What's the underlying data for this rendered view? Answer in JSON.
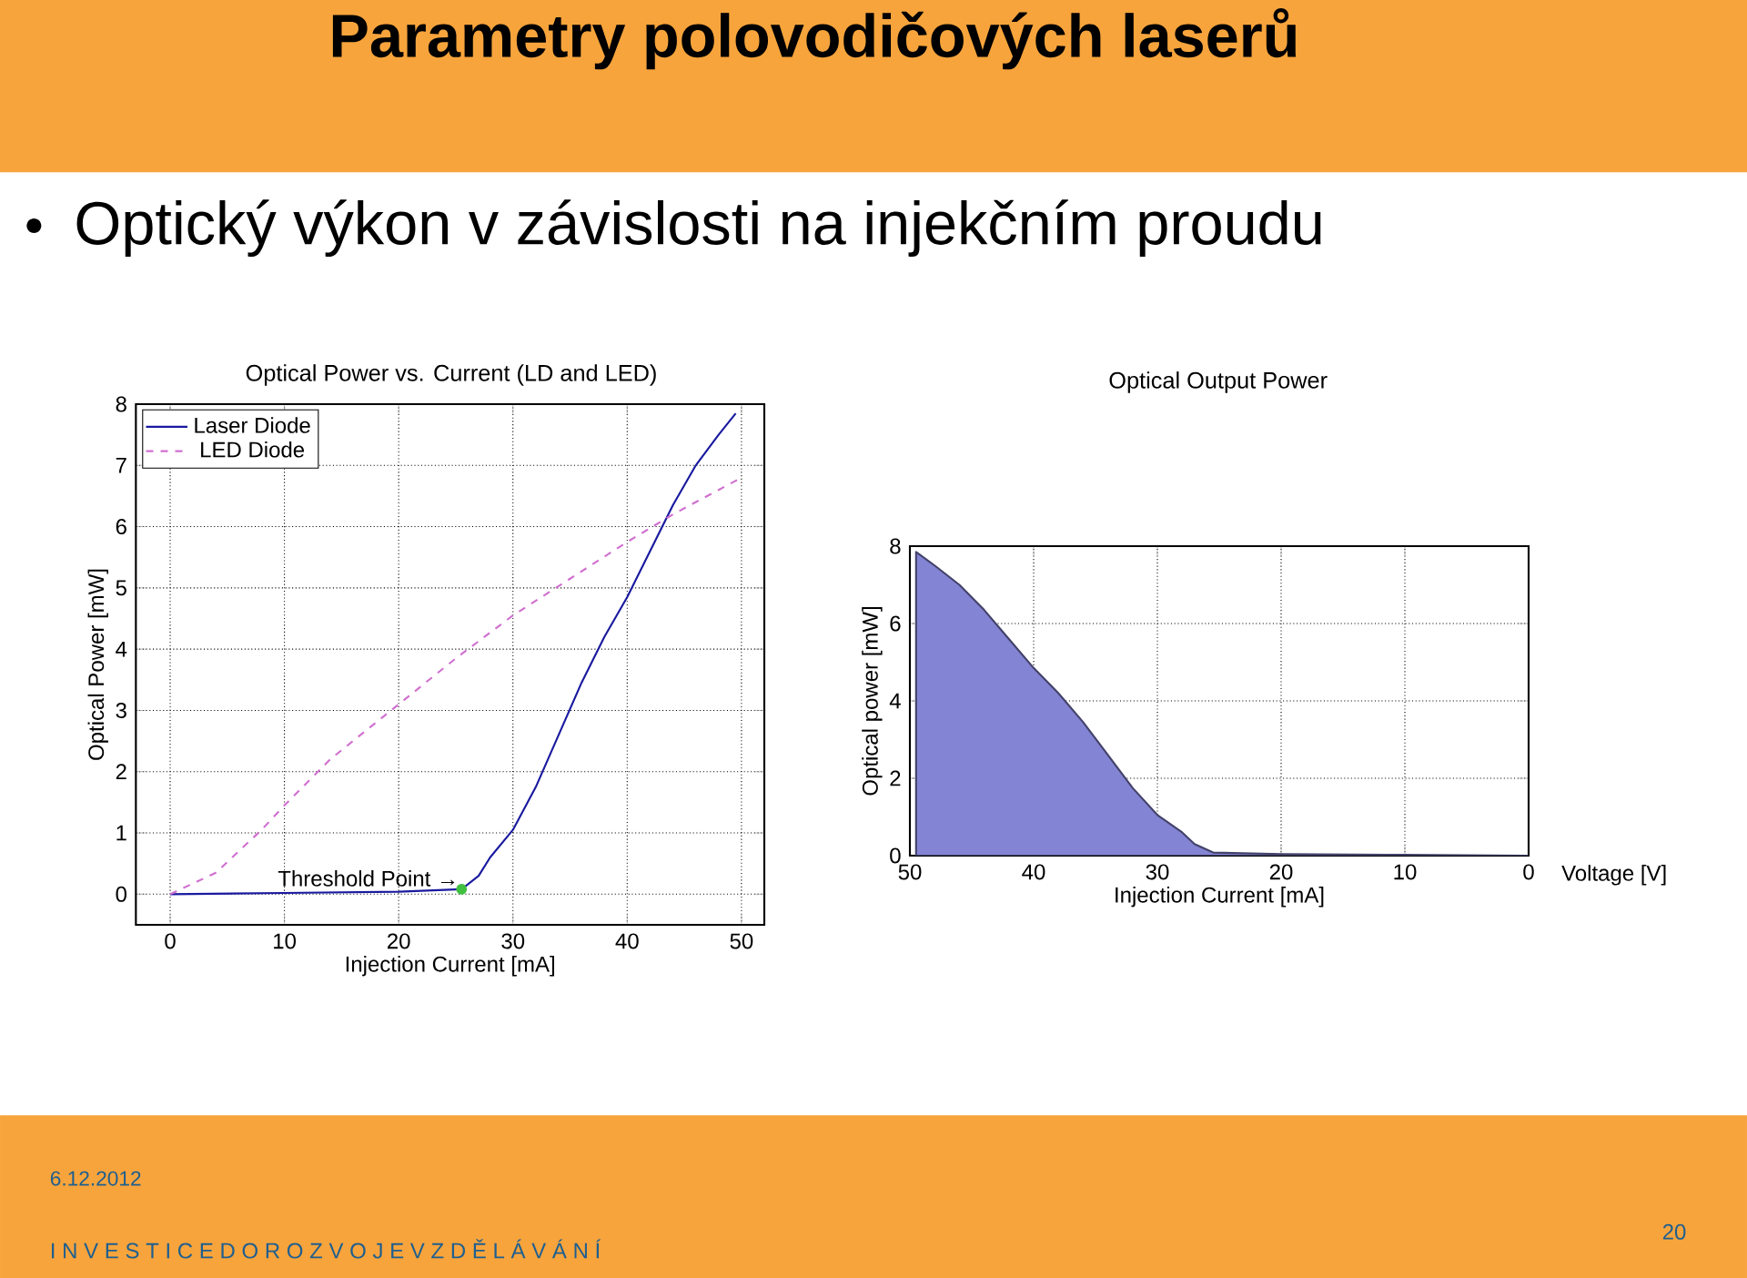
{
  "chart_data": [
    {
      "type": "other",
      "title": "Parametry polovodičových laserů",
      "subtitle": "Optický výkon v závislosti na injekčním proudu",
      "annotations": [
        "6.12.2012",
        "I N V E S T I C E   D O   R O Z V O J E   V Z D Ě L Á V Á N Í",
        "20"
      ]
    },
    {
      "type": "line",
      "title": "Optical Power vs. Current (LD and LED)",
      "xlabel": "Injection Current [mA]",
      "ylabel": "Optical Power [mW]",
      "xlim": [
        -3,
        52
      ],
      "ylim": [
        -0.5,
        8
      ],
      "xticks": [
        0,
        10,
        20,
        30,
        40,
        50
      ],
      "yticks": [
        0,
        1,
        2,
        3,
        4,
        5,
        6,
        7,
        8
      ],
      "grid": true,
      "legend": "top left",
      "series": [
        {
          "name": "Laser Diode",
          "color": "#1a1aa0",
          "line_style": "solid",
          "x": [
            0,
            10,
            20,
            25.5,
            27,
            28,
            30,
            32,
            34,
            36,
            38,
            40,
            42,
            44,
            46,
            48,
            49.5
          ],
          "values": [
            0,
            0.02,
            0.04,
            0.08,
            0.3,
            0.6,
            1.05,
            1.75,
            2.6,
            3.45,
            4.2,
            4.85,
            5.6,
            6.35,
            7.0,
            7.5,
            7.85
          ]
        },
        {
          "name": "LED Diode",
          "color": "#d070d0",
          "line_style": "dashed",
          "x": [
            0,
            4,
            8,
            10,
            14,
            18,
            20,
            25,
            30,
            35,
            40,
            44,
            48,
            50
          ],
          "values": [
            0,
            0.35,
            1.05,
            1.45,
            2.2,
            2.8,
            3.1,
            3.85,
            4.55,
            5.15,
            5.75,
            6.2,
            6.6,
            6.8
          ]
        },
        {
          "type": "scatter",
          "color": "#40c040",
          "x": [
            25.5
          ],
          "values": [
            0.08
          ]
        }
      ],
      "annotations": [
        {
          "text": "Threshold Point →",
          "x": 25.5,
          "y": 0.08
        }
      ]
    },
    {
      "type": "area",
      "title": "Optical Output Power",
      "xlabel": "Injection Current [mA]",
      "ylabel": "Optical power [mW]",
      "xlim": [
        50,
        0
      ],
      "ylim": [
        0,
        8
      ],
      "xticks": [
        0,
        10,
        20,
        30,
        40,
        50
      ],
      "yticks": [
        0,
        2,
        4,
        6,
        8
      ],
      "grid": true,
      "series": [
        {
          "color": "#8484d4",
          "x": [
            0,
            10,
            20,
            25.5,
            27,
            28,
            30,
            32,
            34,
            36,
            38,
            40,
            42,
            44,
            46,
            48,
            49.5
          ],
          "values": [
            0,
            0.02,
            0.04,
            0.08,
            0.3,
            0.6,
            1.05,
            1.75,
            2.6,
            3.45,
            4.2,
            4.85,
            5.6,
            6.35,
            7.0,
            7.5,
            7.85
          ]
        }
      ],
      "annotations": [
        "Voltage [V]"
      ]
    }
  ]
}
